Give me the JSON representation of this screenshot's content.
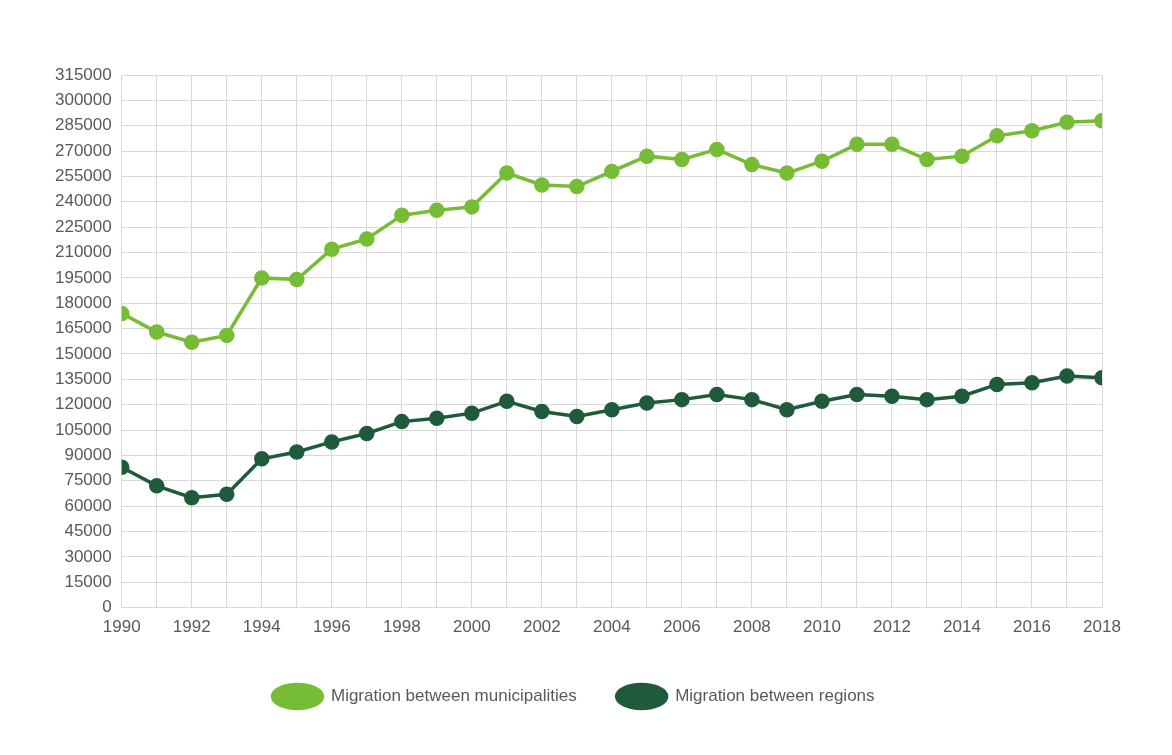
{
  "chart_data": {
    "type": "line",
    "categories": [
      "1990",
      null,
      "1992",
      null,
      "1994",
      null,
      "1996",
      null,
      "1998",
      null,
      "2000",
      null,
      "2002",
      null,
      "2004",
      null,
      "2006",
      null,
      "2008",
      null,
      "2010",
      null,
      "2012",
      null,
      "2014",
      null,
      "2016",
      null,
      "2018"
    ],
    "series": [
      {
        "name": "Migration between municipalities",
        "color": "#77bc35",
        "marker": "circle",
        "line_style": "solid",
        "values": [
          174000,
          163000,
          157000,
          161000,
          195000,
          194000,
          212000,
          218000,
          232000,
          235000,
          237000,
          257000,
          250000,
          249000,
          258000,
          267000,
          265000,
          271000,
          262000,
          257000,
          264000,
          274000,
          274000,
          265000,
          267000,
          279000,
          282000,
          287000,
          288000
        ]
      },
      {
        "name": "Migration between regions",
        "color": "#1f5b3b",
        "marker": "circle",
        "line_style": "solid",
        "values": [
          83000,
          72000,
          65000,
          67000,
          88000,
          92000,
          98000,
          103000,
          110000,
          112000,
          115000,
          122000,
          116000,
          113000,
          117000,
          121000,
          123000,
          126000,
          123000,
          117000,
          122000,
          126000,
          125000,
          123000,
          125000,
          132000,
          133000,
          137000,
          136000
        ]
      }
    ],
    "ylim": [
      0,
      315000
    ],
    "yticks": [
      0,
      15000,
      30000,
      45000,
      60000,
      75000,
      90000,
      105000,
      120000,
      135000,
      150000,
      165000,
      180000,
      195000,
      210000,
      225000,
      240000,
      255000,
      270000,
      285000,
      300000,
      315000
    ],
    "grid": true,
    "legend": "bottom"
  }
}
